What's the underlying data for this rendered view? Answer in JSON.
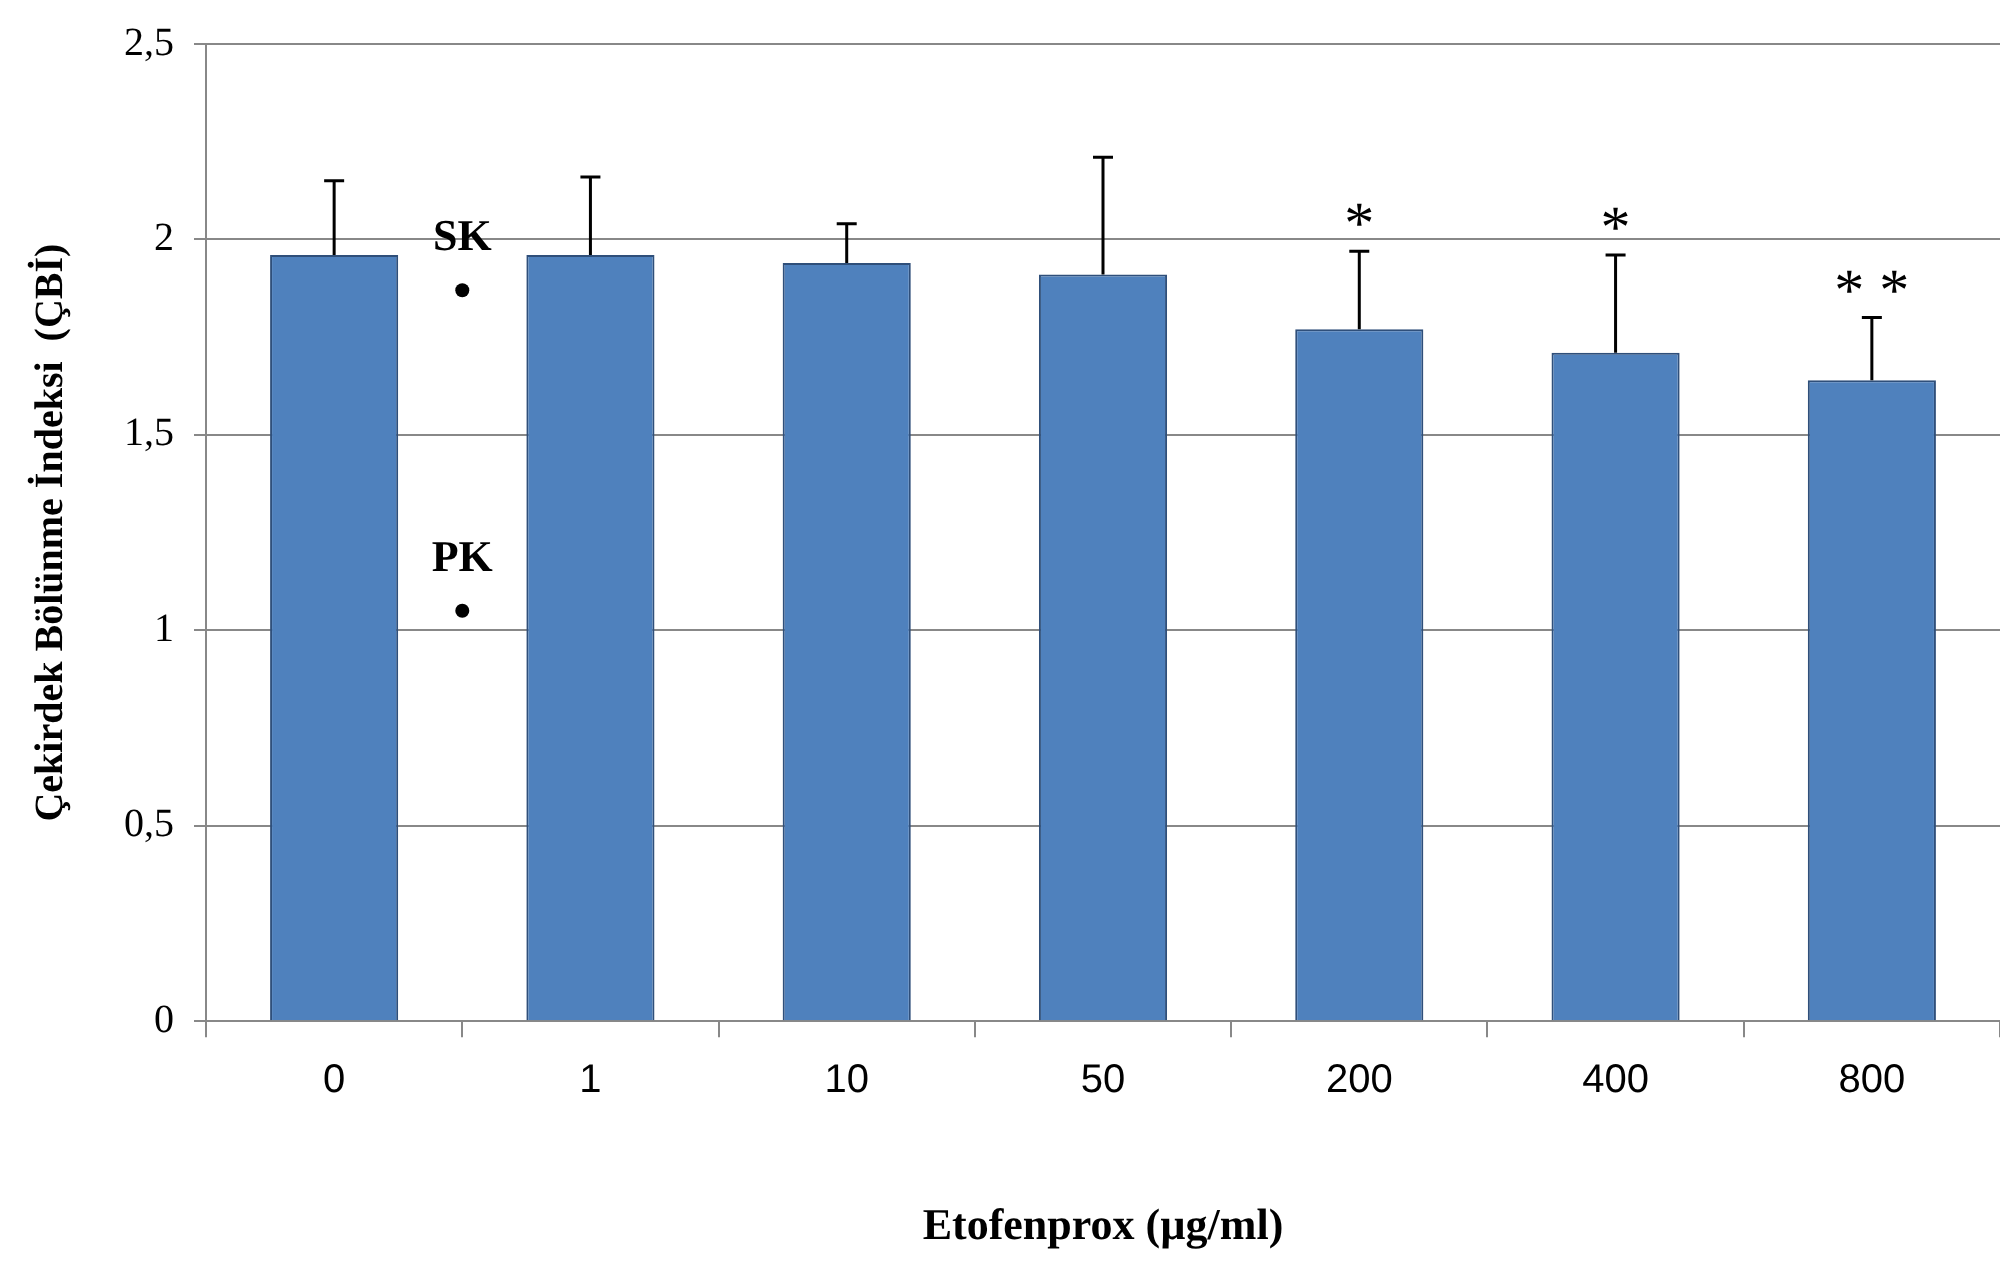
{
  "chart_data": {
    "type": "bar",
    "xlabel": "Etofenprox (µg/ml)",
    "ylabel": "Çekirdek Bölünme İndeksi  (ÇBİ)",
    "categories": [
      "0",
      "1",
      "10",
      "50",
      "200",
      "400",
      "800"
    ],
    "series": [
      {
        "color": "#4f81bd",
        "values": [
          1.96,
          1.96,
          1.94,
          1.91,
          1.77,
          1.71,
          1.64
        ],
        "value_labels": [
          null,
          null,
          null,
          null,
          "*",
          "*",
          "* *"
        ],
        "errors": [
          [
            1.96,
            2.15
          ],
          [
            1.96,
            2.16
          ],
          [
            1.94,
            2.04
          ],
          [
            1.91,
            2.21
          ],
          [
            1.77,
            1.97
          ],
          [
            1.71,
            1.96
          ],
          [
            1.64,
            1.8
          ]
        ]
      }
    ],
    "ylim": [
      0,
      2.5
    ],
    "yticks": [
      {
        "value": 0,
        "label": "0"
      },
      {
        "value": 0.5,
        "label": "0,5"
      },
      {
        "value": 1,
        "label": "1"
      },
      {
        "value": 1.5,
        "label": "1,5"
      },
      {
        "value": 2,
        "label": "2"
      },
      {
        "value": 2.5,
        "label": "2,5"
      }
    ],
    "grid": "y",
    "legend": false,
    "annotations": [
      {
        "text": "SK",
        "y": 1.87
      },
      {
        "text": "PK",
        "y": 1.05
      }
    ]
  }
}
